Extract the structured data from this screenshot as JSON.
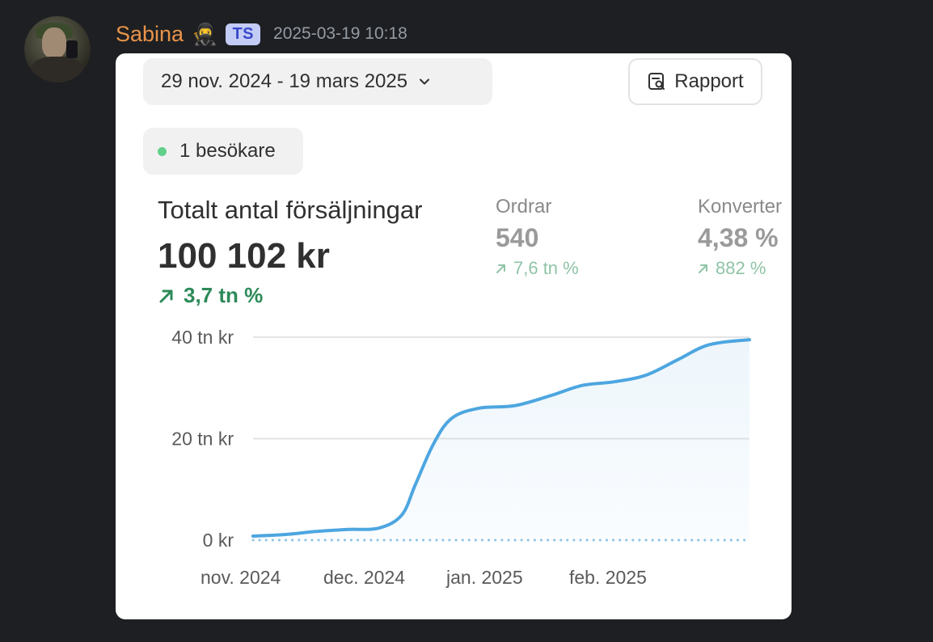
{
  "message": {
    "username": "Sabina",
    "emoji": "🥷",
    "tag": "TS",
    "timestamp": "2025-03-19 10:18"
  },
  "card": {
    "date_range": "29 nov. 2024 - 19 mars 2025",
    "report_label": "Rapport",
    "visitors_label": "1 besökare",
    "main_metric": {
      "label": "Totalt antal försäljningar",
      "value": "100 102 kr",
      "change": "3,7 tn %"
    },
    "orders": {
      "label": "Ordrar",
      "value": "540",
      "change": "7,6 tn %"
    },
    "conversion": {
      "label": "Konverter",
      "value": "4,38 %",
      "change": "882 %"
    }
  },
  "colors": {
    "username": "#e8944a",
    "positive": "#2d8a59",
    "line": "#4da6e0",
    "visitor_dot": "#60d08a"
  },
  "chart_data": {
    "type": "area",
    "x_tick_labels": [
      "nov. 2024",
      "dec. 2024",
      "jan. 2025",
      "feb. 2025"
    ],
    "y_tick_labels": [
      "40 tn kr",
      "20 tn kr",
      "0 kr"
    ],
    "y_ticks": [
      40000,
      20000,
      0
    ],
    "ylim": [
      0,
      40000
    ],
    "grid": true,
    "x": [
      "2024-11-29",
      "2024-12-06",
      "2024-12-13",
      "2024-12-20",
      "2024-12-27",
      "2025-01-01",
      "2025-01-04",
      "2025-01-08",
      "2025-01-12",
      "2025-01-18",
      "2025-01-26",
      "2025-02-03",
      "2025-02-10",
      "2025-02-17",
      "2025-02-24",
      "2025-03-03",
      "2025-03-10",
      "2025-03-19"
    ],
    "series": [
      {
        "values": [
          800,
          1100,
          1700,
          2100,
          2400,
          5000,
          11000,
          19000,
          24000,
          26000,
          26500,
          28500,
          30500,
          31200,
          32500,
          35500,
          38500,
          39500
        ]
      },
      {
        "values": [
          0,
          0,
          0,
          0,
          0,
          0,
          0,
          0,
          0,
          0,
          0,
          0,
          0,
          0,
          0,
          0,
          0,
          0
        ]
      }
    ]
  }
}
